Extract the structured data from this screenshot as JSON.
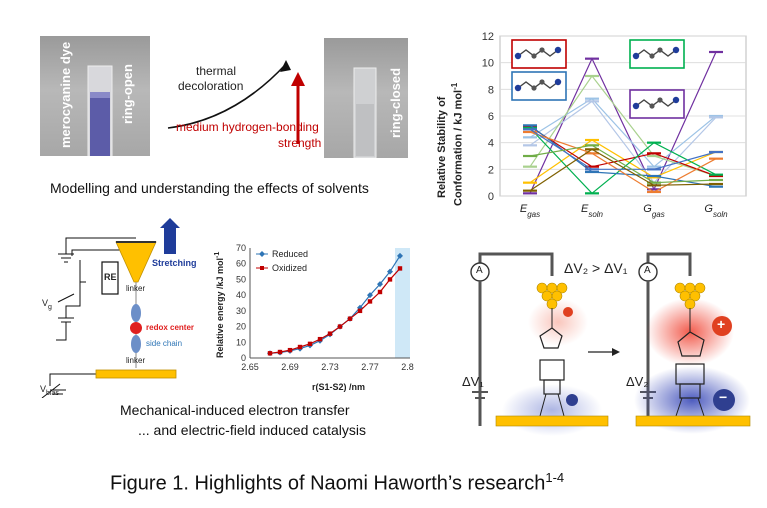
{
  "panel1": {
    "label_dye": "merocyanine dye",
    "label_open": "ring-open",
    "label_closed": "ring-closed",
    "thermal_line1": "thermal",
    "thermal_line2": "decoloration",
    "hbond_line1": "medium hydrogen-bonding",
    "hbond_line2": "strength",
    "caption": "Modelling and understanding the effects of solvents"
  },
  "panel2": {
    "ylabel_line1": "Relative Stability of",
    "ylabel_line2": "Conformation / kJ mol",
    "ylabel_sup": "-1",
    "categories": [
      {
        "main": "E",
        "sub": "gas"
      },
      {
        "main": "E",
        "sub": "soln"
      },
      {
        "main": "G",
        "sub": "gas"
      },
      {
        "main": "G",
        "sub": "soln"
      }
    ],
    "yticks": [
      "0",
      "2",
      "4",
      "6",
      "8",
      "10",
      "12"
    ]
  },
  "panel3": {
    "stretching": "Stretching",
    "re": "RE",
    "vg": "V",
    "vg_sub": "g",
    "vbias": "V",
    "vbias_sub": "bias",
    "linker_top": "linker",
    "linker_bottom": "linker",
    "redox": "redox center",
    "side": "side chain",
    "caption1": "Mechanical-induced electron transfer",
    "caption2": "... and electric-field induced catalysis"
  },
  "panel3chart": {
    "ylabel": "Relative energy /kJ mol",
    "ylabel_sup": "-1",
    "xlabel": "r(S1-S2) /nm",
    "xticks": [
      "2.65",
      "2.69",
      "2.73",
      "2.77",
      "2.81"
    ],
    "yticks": [
      "0",
      "10",
      "20",
      "30",
      "40",
      "50",
      "60",
      "70"
    ],
    "legend_reduced": "Reduced",
    "legend_oxidized": "Oxidized"
  },
  "panel4": {
    "ammeter": "A",
    "compare": "ΔV₂ > ΔV₁",
    "dv1": "ΔV₁",
    "dv2": "ΔV₂",
    "plus": "+",
    "minus": "−"
  },
  "figure_caption": {
    "text": "Figure 1. Highlights of Naomi Haworth’s research",
    "refs": "1-4"
  },
  "chart_data": [
    {
      "type": "line",
      "title": "",
      "xlabel": "",
      "ylabel": "Relative Stability of Conformation / kJ mol-1",
      "categories": [
        "Egas",
        "Esoln",
        "Ggas",
        "Gsoln"
      ],
      "ylim": [
        0,
        12
      ],
      "series": [
        {
          "color": "#7030a0",
          "values": [
            0.2,
            10.3,
            0.5,
            10.8
          ]
        },
        {
          "color": "#9dc3e6",
          "values": [
            4.4,
            7.3,
            2.2,
            6.0
          ]
        },
        {
          "color": "#b4c7e7",
          "values": [
            3.8,
            7.1,
            1.0,
            5.9
          ]
        },
        {
          "color": "#ffc000",
          "values": [
            1.0,
            4.2,
            1.4,
            3.3
          ]
        },
        {
          "color": "#a9d18e",
          "values": [
            2.2,
            9.0,
            3.0,
            1.5
          ]
        },
        {
          "color": "#c00000",
          "values": [
            5.2,
            2.2,
            3.2,
            1.5
          ]
        },
        {
          "color": "#00b050",
          "values": [
            5.1,
            0.2,
            4.0,
            1.6
          ]
        },
        {
          "color": "#2e75b6",
          "values": [
            5.3,
            1.8,
            1.5,
            0.7
          ]
        },
        {
          "color": "#ed7d31",
          "values": [
            4.8,
            3.2,
            0.3,
            2.8
          ]
        },
        {
          "color": "#4472c4",
          "values": [
            5.0,
            2.0,
            2.0,
            3.3
          ]
        },
        {
          "color": "#70ad47",
          "values": [
            3.0,
            3.8,
            1.0,
            1.2
          ]
        },
        {
          "color": "#7f6000",
          "values": [
            0.4,
            3.5,
            0.8,
            0.9
          ]
        }
      ]
    },
    {
      "type": "line",
      "title": "",
      "xlabel": "r(S1-S2) /nm",
      "ylabel": "Relative energy /kJ mol-1",
      "xlim": [
        2.65,
        2.81
      ],
      "ylim": [
        0,
        70
      ],
      "x": [
        2.67,
        2.68,
        2.69,
        2.7,
        2.71,
        2.72,
        2.73,
        2.74,
        2.75,
        2.76,
        2.77,
        2.78,
        2.79,
        2.8
      ],
      "series": [
        {
          "name": "Reduced",
          "color": "#2e75b6",
          "values": [
            3,
            3.5,
            4.5,
            6,
            8,
            11,
            15,
            20,
            25,
            32,
            40,
            47,
            55,
            65
          ]
        },
        {
          "name": "Oxidized",
          "color": "#c00000",
          "values": [
            3,
            3.8,
            5,
            7,
            9,
            12,
            15.5,
            20,
            25,
            30,
            36,
            42,
            50,
            57
          ]
        }
      ]
    }
  ]
}
